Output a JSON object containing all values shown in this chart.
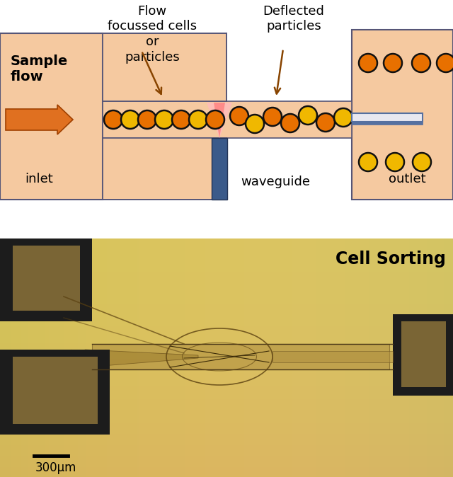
{
  "bg_top": "#c5d9e8",
  "bg_channel": "#f5c9a0",
  "inlet_box_color": "#f5c9a0",
  "outlet_box_color": "#f5c9a0",
  "channel_color": "#f5c9a0",
  "cell_fill_orange": "#e87000",
  "cell_fill_yellow": "#f0c020",
  "cell_edge": "#111111",
  "waveguide_color": "#3a5a8a",
  "laser_color_outer": "#ffaaaa",
  "laser_color_inner": "#ff6666",
  "arrow_color": "#cc6600",
  "text_color": "#000000",
  "sorter_white": "#e8e8f0",
  "sorter_blue": "#5570a0",
  "title": "Cell Sorting",
  "scale_bar_label": "300μm",
  "label_flow": "Flow\nfocussed cells\nor\nparticles",
  "label_deflected": "Deflected\nparticles",
  "label_sample": "Sample\nflow",
  "label_inlet": "inlet",
  "label_outlet": "outlet",
  "label_waveguide": "waveguide"
}
